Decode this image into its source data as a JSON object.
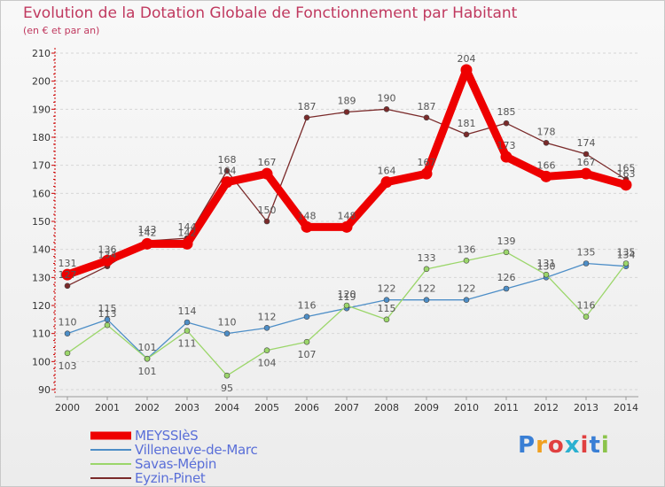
{
  "header": {
    "title": "Evolution de la Dotation Globale de Fonctionnement par Habitant",
    "subtitle": "(en € et par an)"
  },
  "logo": {
    "text": "Proxiti",
    "letter_colors": [
      "#3a7fd5",
      "#f0a020",
      "#e04040",
      "#2bb0d0",
      "#e04040",
      "#3a7fd5",
      "#8bc34a"
    ]
  },
  "colors": {
    "axis_tick": "#cc0000",
    "tick_text": "#333333",
    "grid": "#d6d6d6",
    "data_label": "#555555"
  },
  "chart_data": {
    "type": "line",
    "x": [
      "2000",
      "2001",
      "2002",
      "2003",
      "2004",
      "2005",
      "2006",
      "2007",
      "2008",
      "2009",
      "2010",
      "2011",
      "2012",
      "2013",
      "2014"
    ],
    "ylim": [
      90,
      210
    ],
    "yticks": [
      90,
      100,
      110,
      120,
      130,
      140,
      150,
      160,
      170,
      180,
      190,
      200,
      210
    ],
    "grid": "horizontal dashed",
    "legend_position": "bottom-left",
    "series": [
      {
        "name": "MEYSSIèS",
        "color": "#ee0000",
        "style": "thick",
        "values": [
          131,
          136,
          142,
          142,
          164,
          167,
          148,
          148,
          164,
          167,
          204,
          173,
          166,
          167,
          163
        ],
        "labels": [
          "131",
          "136",
          "142",
          "142",
          "164",
          "167",
          "148",
          "148",
          "164",
          "167",
          "204",
          "173",
          "166",
          "167",
          "163"
        ]
      },
      {
        "name": "Villeneuve-de-Marc",
        "color": "#4d8ec7",
        "style": "thin",
        "values": [
          110,
          115,
          101,
          114,
          110,
          112,
          116,
          119,
          122,
          122,
          122,
          126,
          130,
          135,
          134
        ],
        "labels": [
          "110",
          "115",
          "101",
          "114",
          "110",
          "112",
          "116",
          "119",
          "122",
          "122",
          "122",
          "126",
          "130",
          "135",
          "134"
        ]
      },
      {
        "name": "Savas-Mépin",
        "color": "#9bd66a",
        "style": "thin",
        "values": [
          103,
          113,
          101,
          111,
          95,
          104,
          107,
          120,
          115,
          133,
          136,
          139,
          131,
          116,
          135
        ],
        "labels": [
          "103",
          "113",
          "101",
          "111",
          "95",
          "104",
          "107",
          "120",
          "115",
          "133",
          "136",
          "139",
          "131",
          "116",
          "135"
        ]
      },
      {
        "name": "Eyzin-Pinet",
        "color": "#7a2a2a",
        "style": "thin",
        "values": [
          127,
          134,
          143,
          144,
          168,
          150,
          187,
          189,
          190,
          187,
          181,
          185,
          178,
          174,
          165
        ],
        "labels": [
          "127",
          "134",
          "143",
          "144",
          "168",
          "150",
          "187",
          "189",
          "190",
          "187",
          "181",
          "185",
          "178",
          "174",
          "165"
        ]
      }
    ]
  }
}
